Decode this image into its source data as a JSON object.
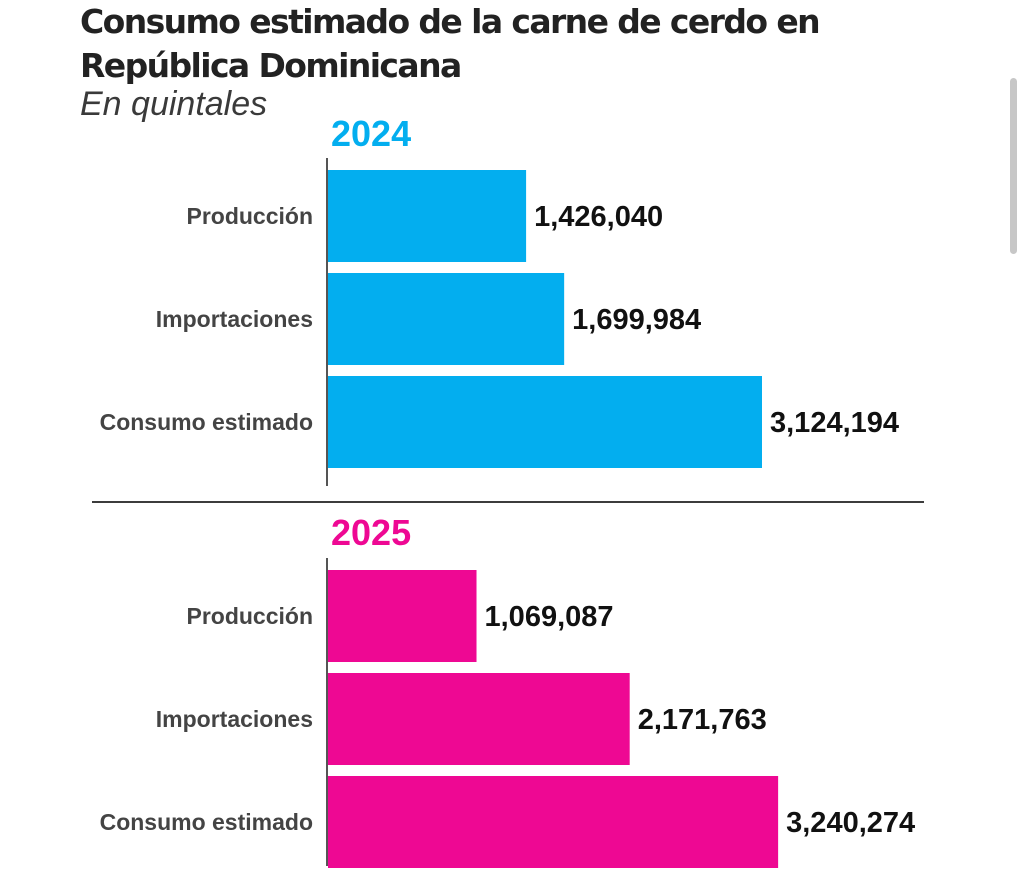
{
  "chart_data": [
    {
      "type": "bar",
      "orientation": "horizontal",
      "title": "Consumo estimado de la carne de cerdo en República Dominicana",
      "subtitle": "En quintales",
      "panel_title": "2024",
      "categories": [
        "Producción",
        "Importaciones",
        "Consumo estimado"
      ],
      "values": [
        1426040,
        1699984,
        3124194
      ],
      "value_labels": [
        "1,426,040",
        "1,699,984",
        "3,124,194"
      ],
      "color": "#03aeef",
      "xlim": [
        0,
        3600000
      ]
    },
    {
      "type": "bar",
      "orientation": "horizontal",
      "title": "Consumo estimado de la carne de cerdo en República Dominicana",
      "subtitle": "En quintales",
      "panel_title": "2025",
      "categories": [
        "Producción",
        "Importaciones",
        "Consumo estimado"
      ],
      "values": [
        1069087,
        2171763,
        3240274
      ],
      "value_labels": [
        "1,069,087",
        "2,171,763",
        "3,240,274"
      ],
      "color": "#ee0893",
      "xlim": [
        0,
        3600000
      ]
    }
  ],
  "header": {
    "title": "Consumo estimado de la carne de cerdo en República Dominicana",
    "subtitle": "En quintales"
  }
}
